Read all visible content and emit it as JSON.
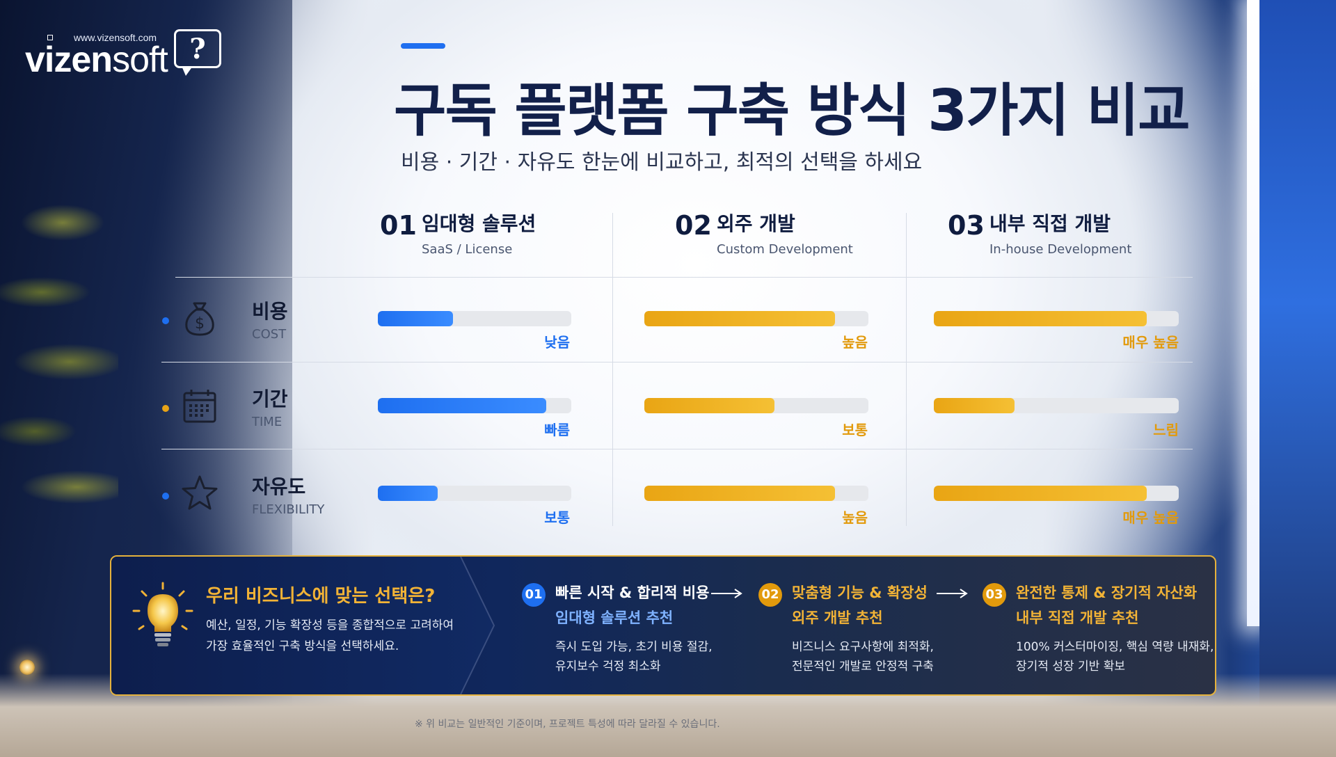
{
  "logo": {
    "url": "www.vizensoft.com",
    "word_bold": "vizen",
    "word_light": "soft",
    "bubble_char": "?"
  },
  "header": {
    "title": "구독 플랫폼 구축 방식 3가지 비교",
    "subtitle": "비용 · 기간 · 자유도 한눈에 비교하고, 최적의 선택을 하세요"
  },
  "columns": [
    {
      "num": "01",
      "name": "임대형 솔루션",
      "en": "SaaS / License"
    },
    {
      "num": "02",
      "name": "외주 개발",
      "en": "Custom Development"
    },
    {
      "num": "03",
      "name": "내부 직접 개발",
      "en": "In-house Development"
    }
  ],
  "rows": [
    {
      "ko": "비용",
      "en": "COST",
      "icon": "money-bag-icon",
      "dot_color": "#1e6ff0",
      "cells": [
        {
          "level": 0.39,
          "label": "낮음",
          "color": "blue"
        },
        {
          "level": 0.85,
          "label": "높음",
          "color": "gold"
        },
        {
          "level": 0.87,
          "label": "매우 높음",
          "color": "gold"
        }
      ]
    },
    {
      "ko": "기간",
      "en": "TIME",
      "icon": "calendar-icon",
      "dot_color": "#e8a317",
      "cells": [
        {
          "level": 0.87,
          "label": "빠름",
          "color": "blue"
        },
        {
          "level": 0.58,
          "label": "보통",
          "color": "gold"
        },
        {
          "level": 0.33,
          "label": "느림",
          "color": "gold"
        }
      ]
    },
    {
      "ko": "자유도",
      "en": "FLEXIBILITY",
      "icon": "star-icon",
      "dot_color": "#1e6ff0",
      "cells": [
        {
          "level": 0.31,
          "label": "보통",
          "color": "blue"
        },
        {
          "level": 0.85,
          "label": "높음",
          "color": "gold"
        },
        {
          "level": 0.87,
          "label": "매우 높음",
          "color": "gold"
        }
      ]
    }
  ],
  "panel": {
    "title": "우리 비즈니스에 맞는 선택은?",
    "desc1": "예산, 일정, 기능 확장성 등을 종합적으로 고려하여",
    "desc2": "가장 효율적인 구축 방식을 선택하세요.",
    "recommendations": [
      {
        "num": "01",
        "t1": "빠른 시작 & 합리적 비용",
        "t2": "임대형 솔루션 추천",
        "d1": "즉시 도입 가능, 초기 비용 절감,",
        "d2": "유지보수 걱정 최소화"
      },
      {
        "num": "02",
        "t1": "맞춤형 기능 & 확장성",
        "t2": "외주 개발 추천",
        "d1": "비즈니스 요구사항에 최적화,",
        "d2": "전문적인 개발로 안정적 구축"
      },
      {
        "num": "03",
        "t1": "완전한 통제 & 장기적 자산화",
        "t2": "내부 직접 개발 추천",
        "d1": "100% 커스터마이징, 핵심 역량 내재화,",
        "d2": "장기적 성장 기반 확보"
      }
    ]
  },
  "footnote": "※ 위 비교는 일반적인 기준이며, 프로젝트 특성에 따라 달라질 수 있습니다."
}
